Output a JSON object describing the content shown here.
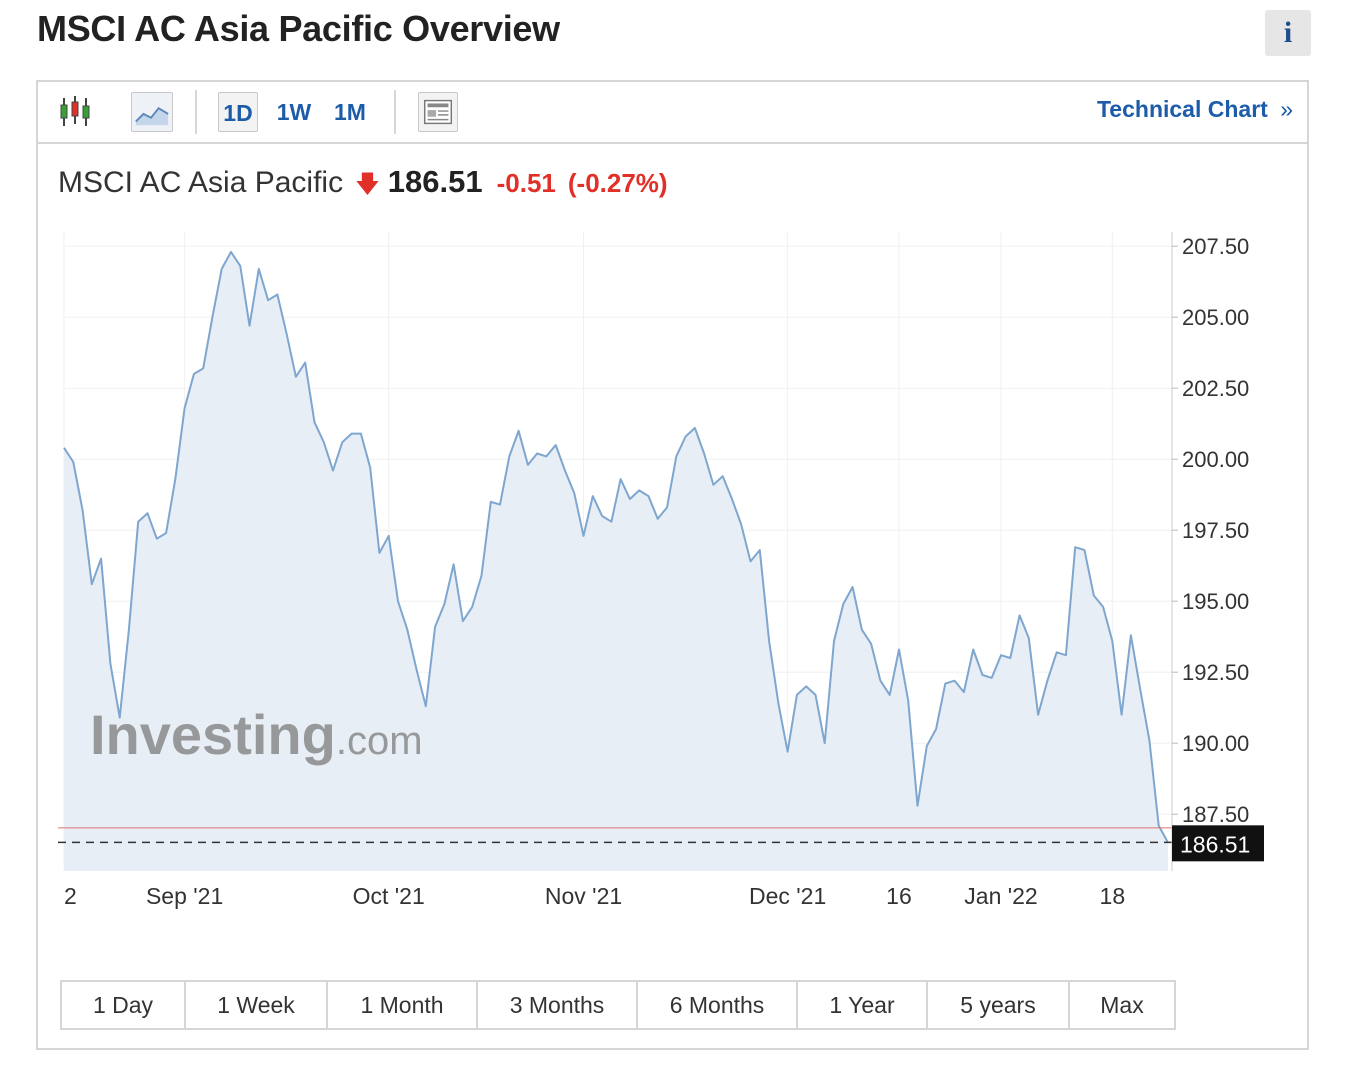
{
  "page": {
    "title": "MSCI AC Asia Pacific Overview",
    "info_label": "i"
  },
  "toolbar": {
    "periods": [
      "1D",
      "1W",
      "1M"
    ],
    "active_period": "1D",
    "technical_chart_label": "Technical Chart",
    "technical_chart_chevron": "»"
  },
  "quote": {
    "name": "MSCI AC Asia Pacific",
    "direction": "down",
    "price": "186.51",
    "change": "-0.51",
    "change_pct": "(-0.27%)"
  },
  "watermark": {
    "brand": "Investing",
    "suffix": ".com"
  },
  "ranges": [
    "1 Day",
    "1 Week",
    "1 Month",
    "3 Months",
    "6 Months",
    "1 Year",
    "5 years",
    "Max"
  ],
  "colors": {
    "line": "#7ea6cf",
    "fill": "#e8eef6",
    "negative": "#e03028",
    "link": "#1d5ca8",
    "last_price_bg": "#111111"
  },
  "chart_data": {
    "type": "area",
    "title": "MSCI AC Asia Pacific",
    "xlabel": "",
    "ylabel": "",
    "ylim": [
      185.5,
      208.0
    ],
    "yticks": [
      207.5,
      205.0,
      202.5,
      200.0,
      197.5,
      195.0,
      192.5,
      190.0,
      187.5
    ],
    "ytick_labels": [
      "207.50",
      "205.00",
      "202.50",
      "200.00",
      "197.50",
      "195.00",
      "192.50",
      "190.00",
      "187.50"
    ],
    "xticks": [
      {
        "label": "2",
        "index": 0
      },
      {
        "label": "Sep '21",
        "index": 13
      },
      {
        "label": "Oct '21",
        "index": 35
      },
      {
        "label": "Nov '21",
        "index": 56
      },
      {
        "label": "Dec '21",
        "index": 78
      },
      {
        "label": "16",
        "index": 90
      },
      {
        "label": "Jan '22",
        "index": 101
      },
      {
        "label": "18",
        "index": 113
      }
    ],
    "grid": true,
    "last_price": 186.51,
    "last_price_label": "186.51",
    "previous_close": 187.02,
    "values": [
      200.4,
      199.9,
      198.2,
      195.6,
      196.5,
      192.8,
      190.9,
      194.0,
      197.8,
      198.1,
      197.2,
      197.4,
      199.3,
      201.8,
      203.0,
      203.2,
      205.0,
      206.7,
      207.3,
      206.8,
      204.7,
      206.7,
      205.6,
      205.8,
      204.4,
      202.9,
      203.4,
      201.3,
      200.6,
      199.6,
      200.6,
      200.9,
      200.9,
      199.7,
      196.7,
      197.3,
      195.0,
      194.0,
      192.6,
      191.3,
      194.1,
      194.9,
      196.3,
      194.3,
      194.8,
      195.9,
      198.5,
      198.4,
      200.1,
      201.0,
      199.8,
      200.2,
      200.1,
      200.5,
      199.6,
      198.8,
      197.3,
      198.7,
      198.0,
      197.8,
      199.3,
      198.6,
      198.9,
      198.7,
      197.9,
      198.3,
      200.1,
      200.8,
      201.1,
      200.2,
      199.1,
      199.4,
      198.6,
      197.7,
      196.4,
      196.8,
      193.6,
      191.4,
      189.7,
      191.7,
      192.0,
      191.7,
      190.0,
      193.6,
      194.9,
      195.5,
      194.0,
      193.5,
      192.2,
      191.7,
      193.3,
      191.5,
      187.8,
      189.9,
      190.5,
      192.1,
      192.2,
      191.8,
      193.3,
      192.4,
      192.3,
      193.1,
      193.0,
      194.5,
      193.7,
      191.0,
      192.2,
      193.2,
      193.1,
      196.9,
      196.8,
      195.2,
      194.8,
      193.6,
      191.0,
      193.8,
      191.9,
      190.1,
      187.1,
      186.5
    ]
  }
}
